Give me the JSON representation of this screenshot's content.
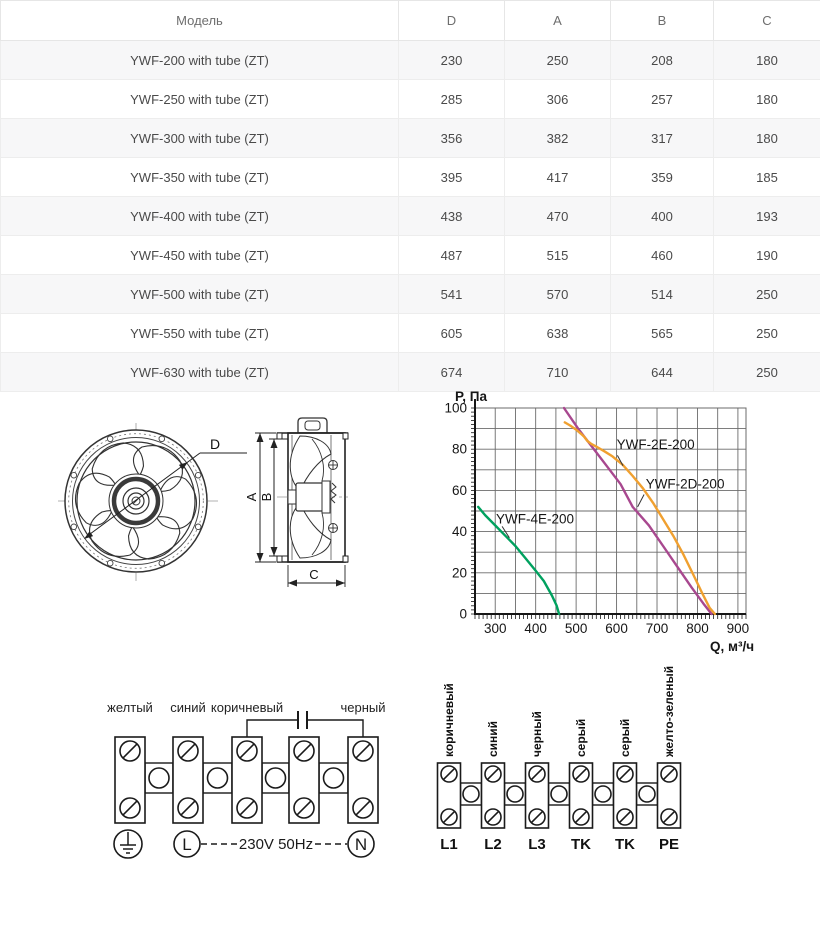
{
  "table": {
    "headers": [
      "Модель",
      "D",
      "A",
      "B",
      "C"
    ],
    "rows": [
      [
        "YWF-200 with tube (ZT)",
        "230",
        "250",
        "208",
        "180"
      ],
      [
        "YWF-250 with tube (ZT)",
        "285",
        "306",
        "257",
        "180"
      ],
      [
        "YWF-300 with tube (ZT)",
        "356",
        "382",
        "317",
        "180"
      ],
      [
        "YWF-350 with tube (ZT)",
        "395",
        "417",
        "359",
        "185"
      ],
      [
        "YWF-400 with tube (ZT)",
        "438",
        "470",
        "400",
        "193"
      ],
      [
        "YWF-450 with tube (ZT)",
        "487",
        "515",
        "460",
        "190"
      ],
      [
        "YWF-500 with tube (ZT)",
        "541",
        "570",
        "514",
        "250"
      ],
      [
        "YWF-550 with tube (ZT)",
        "605",
        "638",
        "565",
        "250"
      ],
      [
        "YWF-630 with tube (ZT)",
        "674",
        "710",
        "644",
        "250"
      ]
    ]
  },
  "fan_drawing": {
    "labels": {
      "d": "D",
      "a": "A",
      "b": "B",
      "c": "C"
    }
  },
  "chart_data": {
    "type": "line",
    "title": "",
    "ylabel": "P, Па",
    "xlabel": "Q, м³/ч",
    "xlim": [
      250,
      920
    ],
    "ylim": [
      0,
      100
    ],
    "x_tick_labels": [
      300,
      400,
      500,
      600,
      700,
      800,
      900
    ],
    "y_tick_labels": [
      0,
      20,
      40,
      60,
      80,
      100
    ],
    "x_grid_step": 50,
    "y_grid_step": 10,
    "x_minor_step": 10,
    "y_minor_step": 2,
    "grid": true,
    "legend_position": "inline-labels",
    "axis_color": "#161616",
    "grid_color": "#6b6b6b",
    "series": [
      {
        "name": "YWF-4E-200",
        "color": "#00a15f",
        "points": [
          [
            258,
            52
          ],
          [
            275,
            48
          ],
          [
            300,
            43
          ],
          [
            325,
            38
          ],
          [
            350,
            33
          ],
          [
            375,
            27
          ],
          [
            400,
            21
          ],
          [
            420,
            16
          ],
          [
            440,
            9
          ],
          [
            452,
            4
          ],
          [
            458,
            0
          ]
        ]
      },
      {
        "name": "YWF-2D-200",
        "color": "#a8488f",
        "points": [
          [
            470,
            100
          ],
          [
            505,
            90
          ],
          [
            540,
            81
          ],
          [
            575,
            72
          ],
          [
            610,
            63
          ],
          [
            640,
            52
          ],
          [
            680,
            43
          ],
          [
            715,
            33
          ],
          [
            750,
            23
          ],
          [
            785,
            13
          ],
          [
            815,
            5
          ],
          [
            835,
            0
          ]
        ]
      },
      {
        "name": "YWF-2E-200",
        "color": "#f0a030",
        "points": [
          [
            472,
            93
          ],
          [
            485,
            91.5
          ],
          [
            500,
            89.5
          ],
          [
            512,
            87.5
          ],
          [
            520,
            86
          ],
          [
            528,
            84
          ],
          [
            538,
            82.5
          ],
          [
            552,
            81
          ],
          [
            570,
            79
          ],
          [
            590,
            76.5
          ],
          [
            615,
            72.5
          ],
          [
            640,
            67
          ],
          [
            665,
            61
          ],
          [
            690,
            54
          ],
          [
            715,
            46
          ],
          [
            740,
            38
          ],
          [
            765,
            29
          ],
          [
            790,
            19
          ],
          [
            812,
            10
          ],
          [
            830,
            3
          ],
          [
            843,
            0
          ]
        ]
      }
    ],
    "curve_labels": [
      {
        "text": "YWF-4E-200",
        "x": 302,
        "y": 44,
        "leader": [
          [
            317,
            42.5
          ],
          [
            335,
            37
          ]
        ]
      },
      {
        "text": "YWF-2E-200",
        "x": 600,
        "y": 80,
        "leader": [
          [
            602,
            77
          ],
          [
            616,
            72
          ]
        ]
      },
      {
        "text": "YWF-2D-200",
        "x": 672,
        "y": 61,
        "leader": [
          [
            668,
            58
          ],
          [
            652,
            52
          ]
        ]
      }
    ]
  },
  "wiring_single_phase": {
    "wire_labels": [
      "желтый",
      "синий",
      "коричневый",
      "черный"
    ],
    "voltage_label": "230V 50Hz",
    "line_label": "L",
    "neutral_label": "N"
  },
  "wiring_three_phase": {
    "wire_labels": [
      "коричневый",
      "синий",
      "черный",
      "серый",
      "серый",
      "желто-зеленый"
    ],
    "terminal_labels": [
      "L1",
      "L2",
      "L3",
      "TK",
      "TK",
      "PE"
    ]
  }
}
